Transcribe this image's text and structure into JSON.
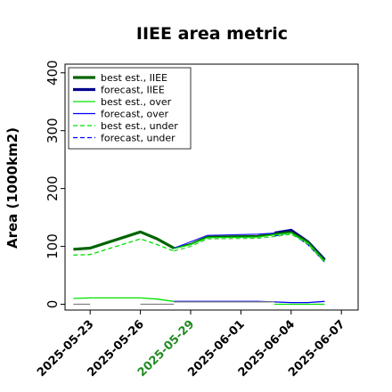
{
  "chart_data": {
    "type": "line",
    "title": "IIEE area metric",
    "ylabel": "Area (1000km2)",
    "xlabel": "",
    "ylim": [
      -10,
      415
    ],
    "yticks": [
      0,
      100,
      200,
      300,
      400
    ],
    "xlim": [
      "2025-05-21T12",
      "2025-06-08"
    ],
    "xticks": [
      "2025-05-23",
      "2025-05-26",
      "2025-05-29",
      "2025-06-01",
      "2025-06-04",
      "2025-06-07"
    ],
    "highlight_tick": "2025-05-29",
    "highlight_color": "#228b22",
    "grid": false,
    "legend_position": "upper-left",
    "series": [
      {
        "name": "best est., IIEE",
        "color": "#006400",
        "width": 3.2,
        "dash": "",
        "x": [
          "2025-05-22",
          "2025-05-23",
          "2025-05-26",
          "2025-05-27",
          "2025-05-28"
        ],
        "y": [
          95,
          97,
          125,
          113,
          97
        ]
      },
      {
        "name": "forecast, IIEE",
        "color": "#00008b",
        "width": 3.2,
        "dash": "",
        "x": [
          "2025-06-03",
          "2025-06-04",
          "2025-06-05",
          "2025-06-06"
        ],
        "y": [
          123,
          128,
          108,
          77
        ]
      },
      {
        "name": "best est., over",
        "color": "#00e000",
        "width": 1.3,
        "dash": "",
        "x": [
          "2025-05-22",
          "2025-05-23",
          "2025-05-26",
          "2025-05-27",
          "2025-05-28"
        ],
        "y": [
          10,
          11,
          11,
          9,
          5
        ]
      },
      {
        "name": "forecast, over",
        "color": "#0000ff",
        "width": 1.3,
        "dash": "",
        "x": [
          "2025-05-28",
          "2025-05-30",
          "2025-06-02",
          "2025-06-03",
          "2025-06-04",
          "2025-06-05",
          "2025-06-06"
        ],
        "y": [
          5,
          5,
          5,
          4,
          3,
          3,
          5
        ]
      },
      {
        "name": "best est., under",
        "color": "#00e000",
        "width": 1.3,
        "dash": "5,3",
        "x": [
          "2025-05-22",
          "2025-05-23",
          "2025-05-26",
          "2025-05-27",
          "2025-05-28"
        ],
        "y": [
          85,
          86,
          113,
          103,
          92
        ]
      },
      {
        "name": "forecast, under",
        "color": "#0000ff",
        "width": 1.3,
        "dash": "5,3",
        "x": [
          "2025-06-03",
          "2025-06-04",
          "2025-06-05",
          "2025-06-06"
        ],
        "y": [
          118,
          124,
          103,
          73
        ]
      },
      {
        "name": "",
        "color": "#006400",
        "width": 2.0,
        "dash": "",
        "x": [
          "2025-05-28",
          "2025-05-29",
          "2025-05-30",
          "2025-06-02",
          "2025-06-03",
          "2025-06-04",
          "2025-06-05",
          "2025-06-06"
        ],
        "y": [
          97,
          104,
          117,
          118,
          122,
          125,
          108,
          76
        ]
      },
      {
        "name": "",
        "color": "#1a1aff",
        "width": 1.2,
        "dash": "",
        "x": [
          "2025-05-28",
          "2025-05-29",
          "2025-05-30",
          "2025-06-02",
          "2025-06-03"
        ],
        "y": [
          97,
          108,
          119,
          121,
          123
        ]
      },
      {
        "name": "",
        "color": "#00e000",
        "width": 1.2,
        "dash": "",
        "x": [
          "2025-05-28",
          "2025-05-29",
          "2025-05-30",
          "2025-06-02",
          "2025-06-03",
          "2025-06-04",
          "2025-06-05",
          "2025-06-06"
        ],
        "y": [
          96,
          103,
          115,
          116,
          120,
          123,
          106,
          74
        ]
      },
      {
        "name": "",
        "color": "#2ecc2e",
        "width": 1.2,
        "dash": "5,3",
        "x": [
          "2025-05-28",
          "2025-05-29",
          "2025-05-30",
          "2025-06-02",
          "2025-06-03",
          "2025-06-04",
          "2025-06-05",
          "2025-06-06"
        ],
        "y": [
          92,
          100,
          113,
          114,
          117,
          121,
          104,
          72
        ]
      },
      {
        "name": "",
        "color": "#808080",
        "width": 1.2,
        "dash": "",
        "x": [
          "2025-05-22",
          "2025-05-23"
        ],
        "y": [
          0,
          0
        ]
      },
      {
        "name": "",
        "color": "#808080",
        "width": 1.2,
        "dash": "",
        "x": [
          "2025-05-26",
          "2025-05-28"
        ],
        "y": [
          0,
          0
        ]
      },
      {
        "name": "",
        "color": "#00e000",
        "width": 1.2,
        "dash": "",
        "x": [
          "2025-06-03",
          "2025-06-04",
          "2025-06-05",
          "2025-06-06"
        ],
        "y": [
          0,
          0,
          0,
          0
        ]
      },
      {
        "name": "",
        "color": "#808080",
        "width": 1.2,
        "dash": "",
        "x": [
          "2025-05-28",
          "2025-06-03"
        ],
        "y": [
          4,
          4
        ]
      }
    ]
  }
}
